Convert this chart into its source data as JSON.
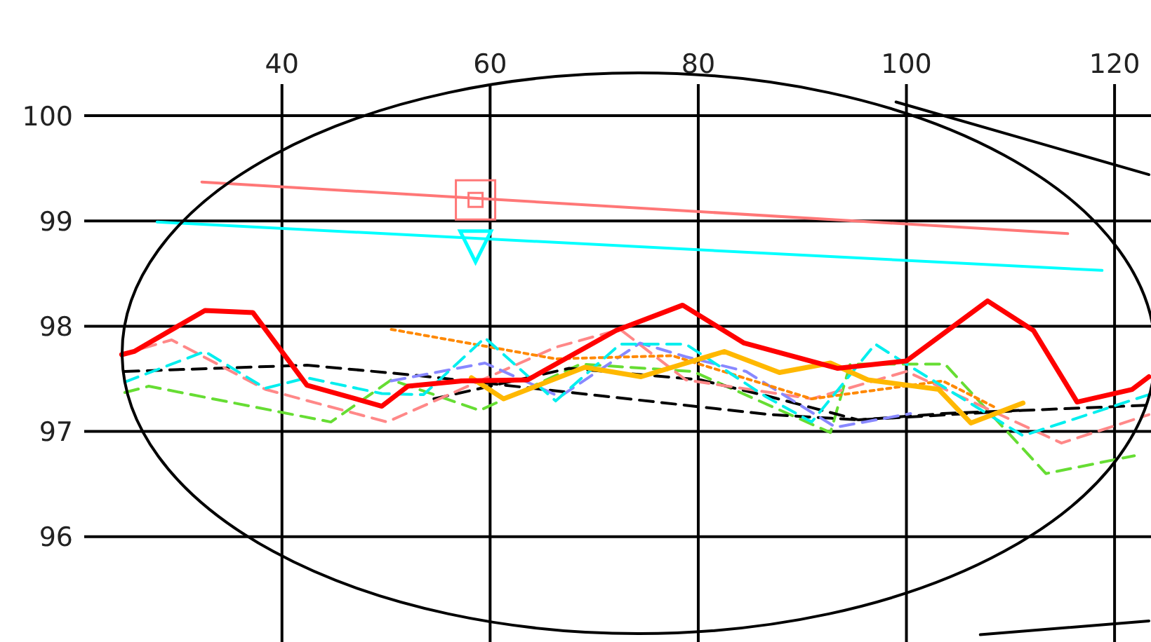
{
  "chart_data": {
    "type": "line",
    "xlim": [
      21,
      123.5
    ],
    "ylim": [
      95,
      100.3
    ],
    "xticks": [
      40,
      60,
      80,
      100,
      120
    ],
    "yticks": [
      96,
      97,
      98,
      99,
      100
    ],
    "grid": true,
    "marker": "none",
    "series": [
      {
        "color": "#000000",
        "line_style": "solid",
        "x": [
          99.0,
          123.3
        ],
        "values": [
          100.13,
          99.44
        ]
      },
      {
        "color": "#000000",
        "line_style": "solid",
        "x": [
          107.1,
          123.3
        ],
        "values": [
          95.07,
          95.2
        ]
      },
      {
        "color": "#ff7777",
        "line_style": "solid",
        "x": [
          32.3,
          115.5
        ],
        "values": [
          99.37,
          98.88
        ]
      },
      {
        "color": "#00ffff",
        "line_style": "solid",
        "x": [
          28.0,
          118.8
        ],
        "values": [
          98.99,
          98.53
        ]
      },
      {
        "type": "scatter",
        "marker": "square",
        "color": "#ff7777",
        "x": [
          58.6
        ],
        "values": [
          99.2
        ]
      },
      {
        "type": "scatter",
        "marker": "triangle",
        "color": "#00ffff",
        "x": [
          58.6
        ],
        "values": [
          98.77
        ]
      },
      {
        "color": "#66dd33",
        "line_style": "dashed",
        "x": [
          24.9,
          27.2,
          44.7,
          50.5,
          59.0,
          68.7,
          79.5,
          92.7,
          94.6,
          103.7,
          113.4,
          121.9
        ],
        "values": [
          97.37,
          97.43,
          97.09,
          97.49,
          97.2,
          97.64,
          97.57,
          96.99,
          97.64,
          97.64,
          96.6,
          96.77
        ]
      },
      {
        "color": "#000000",
        "line_style": "dashed",
        "x": [
          24.9,
          42.4,
          53.2,
          86.9,
          95.4,
          111.2,
          123.3
        ],
        "values": [
          97.57,
          97.63,
          97.53,
          97.16,
          97.11,
          97.2,
          97.25
        ]
      },
      {
        "color": "#000000",
        "line_style": "dashed",
        "x": [
          54.6,
          67.6,
          80.2,
          86.9,
          95.4,
          103.5,
          110.8
        ],
        "values": [
          97.31,
          97.6,
          97.49,
          97.33,
          97.11,
          97.17,
          97.2
        ]
      },
      {
        "color": "#ff8888",
        "line_style": "dashed",
        "x": [
          24.5,
          29.4,
          38.4,
          50.1,
          66.3,
          72.5,
          78.8,
          90.9,
          100.0,
          114.9,
          123.3
        ],
        "values": [
          97.73,
          97.87,
          97.4,
          97.09,
          97.8,
          97.97,
          97.49,
          97.31,
          97.57,
          96.89,
          97.16
        ]
      },
      {
        "color": "#8888ff",
        "line_style": "dashed",
        "x": [
          50.5,
          59.5,
          66.7,
          74.4,
          78.8,
          84.6,
          93.2,
          100.4
        ],
        "values": [
          97.48,
          97.65,
          97.33,
          97.84,
          97.71,
          97.57,
          97.04,
          97.17
        ]
      },
      {
        "color": "#ff8800",
        "line_style": "dotted",
        "x": [
          50.5,
          66.3,
          77.5,
          90.9,
          103.5,
          108.5
        ],
        "values": [
          97.97,
          97.69,
          97.72,
          97.31,
          97.48,
          97.23
        ]
      },
      {
        "color": "#00eeee",
        "line_style": "dashed",
        "x": [
          24.9,
          32.6,
          38.4,
          42.4,
          49.6,
          53.6,
          59.5,
          66.3,
          72.5,
          78.8,
          86.5,
          90.9,
          97.0,
          100.0,
          111.2,
          123.3
        ],
        "values": [
          97.47,
          97.76,
          97.41,
          97.51,
          97.36,
          97.35,
          97.89,
          97.29,
          97.83,
          97.83,
          97.33,
          97.09,
          97.83,
          97.64,
          96.96,
          97.35
        ]
      },
      {
        "color": "#ffb800",
        "line_style": "solid",
        "x": [
          58.2,
          61.3,
          69.1,
          74.5,
          82.5,
          87.8,
          92.7,
          96.3,
          103.1,
          106.2,
          111.2
        ],
        "values": [
          97.51,
          97.31,
          97.61,
          97.52,
          97.76,
          97.56,
          97.65,
          97.49,
          97.4,
          97.08,
          97.27
        ]
      },
      {
        "color": "#ff0000",
        "line_style": "solid",
        "x": [
          24.6,
          25.8,
          32.6,
          37.2,
          42.4,
          49.6,
          52.1,
          57.3,
          63.6,
          72.1,
          78.5,
          84.4,
          93.4,
          100.0,
          107.8,
          112.2,
          116.4,
          121.7,
          123.3
        ],
        "values": [
          97.73,
          97.76,
          98.15,
          98.13,
          97.44,
          97.24,
          97.43,
          97.48,
          97.49,
          97.96,
          98.2,
          97.84,
          97.6,
          97.67,
          98.24,
          97.96,
          97.28,
          97.4,
          97.52
        ]
      }
    ]
  }
}
